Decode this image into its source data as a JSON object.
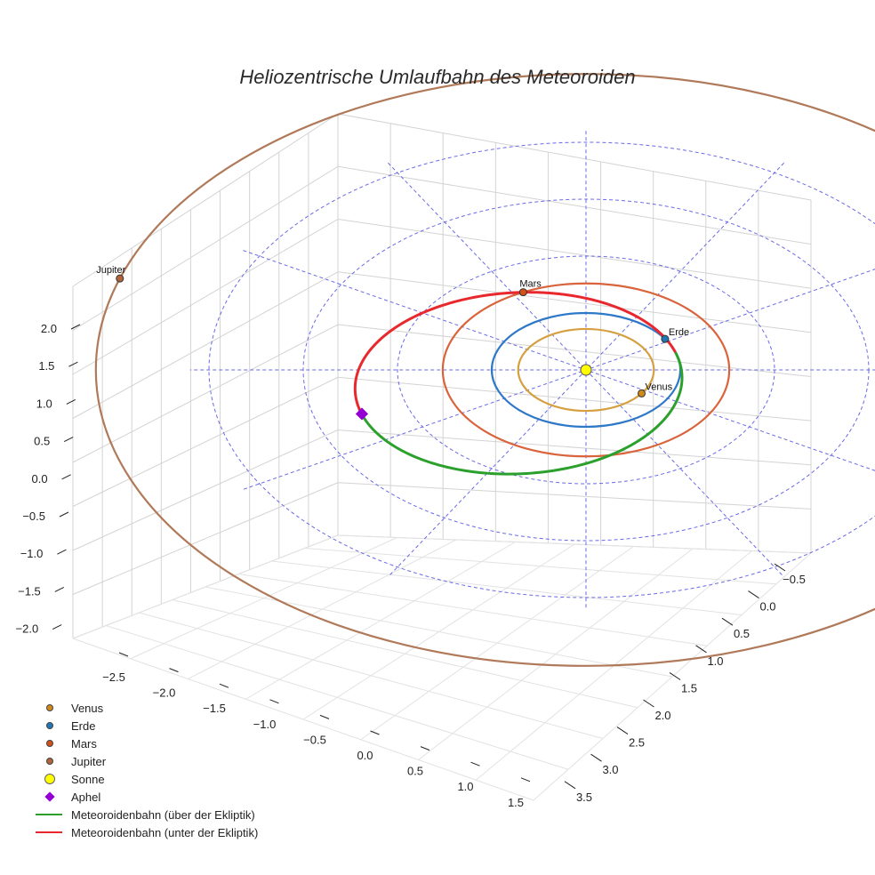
{
  "chart_data": {
    "type": "line",
    "title": "Heliozentrische Umlaufbahn des Meteoroiden",
    "axes": {
      "z_ticks": [
        "2.0",
        "1.5",
        "1.0",
        "0.5",
        "0.0",
        "−0.5",
        "−1.0",
        "−1.5",
        "−2.0"
      ],
      "x_ticks": [
        "−2.5",
        "−2.0",
        "−1.5",
        "−1.0",
        "−0.5",
        "0.0",
        "0.5",
        "1.0",
        "1.5"
      ],
      "y_ticks": [
        "−0.5",
        "0.0",
        "0.5",
        "1.0",
        "1.5",
        "2.0",
        "2.5",
        "3.0",
        "3.5"
      ]
    },
    "orbits": [
      {
        "name": "Venus",
        "radius_au": 0.72,
        "color": "#d4a040"
      },
      {
        "name": "Erde",
        "radius_au": 1.0,
        "color": "#2e78c8"
      },
      {
        "name": "Mars",
        "radius_au": 1.52,
        "color": "#d9633a"
      },
      {
        "name": "Jupiter",
        "radius_au": 5.2,
        "color": "#b07a5a"
      }
    ],
    "reference_circles_au": [
      1,
      2,
      3,
      4
    ],
    "planets": [
      {
        "name": "Venus",
        "label": "Venus",
        "angle_deg": -35,
        "color": "#d08a1a"
      },
      {
        "name": "Erde",
        "label": "Erde",
        "angle_deg": 33,
        "color": "#1f77b4"
      },
      {
        "name": "Mars",
        "label": "Mars",
        "angle_deg": 116,
        "color": "#d2501a"
      },
      {
        "name": "Jupiter",
        "label": "Jupiter",
        "angle_deg": 162,
        "color": "#b0643c"
      }
    ],
    "meteoroid_orbit": {
      "perihelion_au": 1.0,
      "aphelion_au": 2.5,
      "semi_major_au": 1.75,
      "eccentricity": 0.43,
      "aphelion_direction_deg": 198
    },
    "sun": {
      "name": "Sonne",
      "color": "#ffff00"
    },
    "aphel": {
      "name": "Aphel",
      "color": "#9400d3"
    },
    "legend": [
      {
        "label": "Venus",
        "symbol": "dot",
        "color": "#d08a1a"
      },
      {
        "label": "Erde",
        "symbol": "dot",
        "color": "#1f77b4"
      },
      {
        "label": "Mars",
        "symbol": "dot",
        "color": "#d2501a"
      },
      {
        "label": "Jupiter",
        "symbol": "dot",
        "color": "#b0643c"
      },
      {
        "label": "Sonne",
        "symbol": "sun",
        "color": "#ffff00"
      },
      {
        "label": "Aphel",
        "symbol": "diamond",
        "color": "#9400d3"
      },
      {
        "label": "Meteoroidenbahn (über der Ekliptik)",
        "symbol": "line",
        "color": "#2ca02c"
      },
      {
        "label": "Meteoroidenbahn (unter der Ekliptik)",
        "symbol": "line",
        "color": "#e8282d"
      }
    ]
  }
}
